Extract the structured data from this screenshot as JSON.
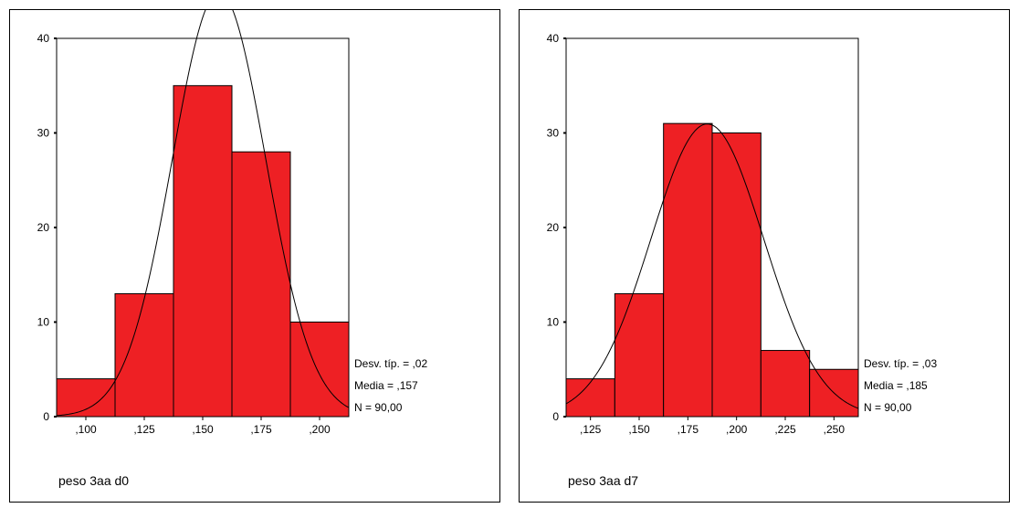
{
  "chart_data": [
    {
      "type": "histogram",
      "xlabel": "peso 3aa d0",
      "ylim": [
        0,
        40
      ],
      "yticks": [
        "0",
        "10",
        "20",
        "30",
        "40"
      ],
      "xlim": [
        0.0875,
        0.2125
      ],
      "bin_width": 0.025,
      "categories": [
        ",100",
        ",125",
        ",150",
        ",175",
        ",200"
      ],
      "bin_centers": [
        0.1,
        0.125,
        0.15,
        0.175,
        0.2
      ],
      "values": [
        4,
        13,
        35,
        28,
        10
      ],
      "normal_curve": true,
      "stats": [
        "Desv. típ. = ,02",
        "Media = ,157",
        "N = 90,00"
      ],
      "mean": 0.157,
      "sd": 0.02,
      "n": 90,
      "bar_color": "#ee2024"
    },
    {
      "type": "histogram",
      "xlabel": "peso 3aa d7",
      "ylim": [
        0,
        40
      ],
      "yticks": [
        "0",
        "10",
        "20",
        "30",
        "40"
      ],
      "xlim": [
        0.1125,
        0.2625
      ],
      "bin_width": 0.025,
      "categories": [
        ",125",
        ",150",
        ",175",
        ",200",
        ",225",
        ",250"
      ],
      "bin_centers": [
        0.125,
        0.15,
        0.175,
        0.2,
        0.225,
        0.25
      ],
      "values": [
        4,
        13,
        31,
        30,
        7,
        5
      ],
      "normal_curve": true,
      "stats": [
        "Desv. típ. = ,03",
        "Media = ,185",
        "N = 90,00"
      ],
      "mean": 0.185,
      "sd": 0.029,
      "n": 90,
      "bar_color": "#ee2024"
    }
  ]
}
